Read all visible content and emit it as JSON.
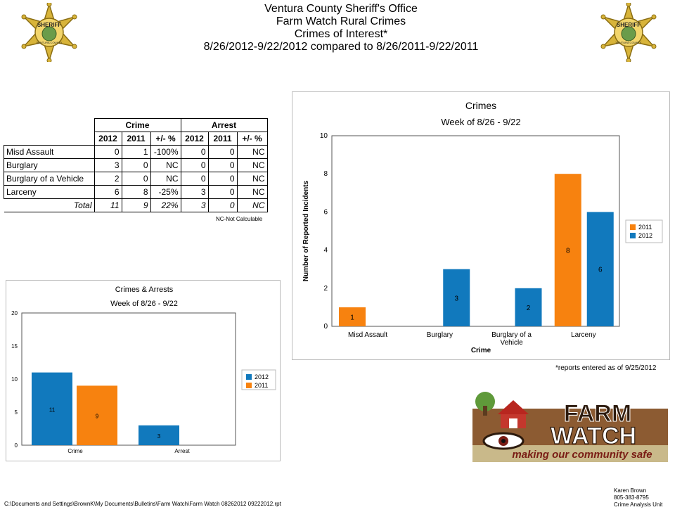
{
  "header": {
    "line1": "Ventura County Sheriff's Office",
    "line2": "Farm Watch Rural Crimes",
    "line3": "Crimes of Interest*",
    "line4": "8/26/2012-9/22/2012 compared to 8/26/2011-9/22/2011"
  },
  "badge": {
    "top_text": "SHERIFF",
    "bottom_text": "VENTURA COUNTY"
  },
  "table": {
    "group_crime": "Crime",
    "group_arrest": "Arrest",
    "col_2012": "2012",
    "col_2011": "2011",
    "col_pct": "+/- %",
    "rows": [
      {
        "label": "Misd Assault",
        "c2012": "0",
        "c2011": "1",
        "cpct": "-100%",
        "a2012": "0",
        "a2011": "0",
        "apct": "NC"
      },
      {
        "label": "Burglary",
        "c2012": "3",
        "c2011": "0",
        "cpct": "NC",
        "a2012": "0",
        "a2011": "0",
        "apct": "NC"
      },
      {
        "label": "Burglary of a Vehicle",
        "c2012": "2",
        "c2011": "0",
        "cpct": "NC",
        "a2012": "0",
        "a2011": "0",
        "apct": "NC"
      },
      {
        "label": "Larceny",
        "c2012": "6",
        "c2011": "8",
        "cpct": "-25%",
        "a2012": "3",
        "a2011": "0",
        "apct": "NC"
      }
    ],
    "total": {
      "label": "Total",
      "c2012": "11",
      "c2011": "9",
      "cpct": "22%",
      "a2012": "3",
      "a2011": "0",
      "apct": "NC"
    },
    "note": "NC-Not Calculable"
  },
  "chart_data": [
    {
      "type": "bar",
      "title": "Crimes",
      "subtitle": "Week of 8/26 - 9/22",
      "xlabel": "Crime",
      "ylabel": "Number of Reported Incidents",
      "categories": [
        "Misd  Assault",
        "Burglary",
        "Burglary of a Vehicle",
        "Larceny"
      ],
      "series": [
        {
          "name": "2011",
          "color": "#f7820f",
          "values": [
            1,
            0,
            0,
            8
          ]
        },
        {
          "name": "2012",
          "color": "#1179bd",
          "values": [
            0,
            3,
            2,
            6
          ]
        }
      ],
      "ylim": [
        0,
        10
      ],
      "yticks": [
        0,
        2,
        4,
        6,
        8,
        10
      ],
      "grid": false,
      "legend": "right"
    },
    {
      "type": "bar",
      "title": "Crimes & Arrests",
      "subtitle": "Week of 8/26 - 9/22",
      "xlabel": "",
      "ylabel": "",
      "categories": [
        "Crime",
        "Arrest"
      ],
      "series": [
        {
          "name": "2012",
          "color": "#1179bd",
          "values": [
            11,
            3
          ]
        },
        {
          "name": "2011",
          "color": "#f7820f",
          "values": [
            9,
            0
          ]
        }
      ],
      "ylim": [
        0,
        20
      ],
      "yticks": [
        0,
        5,
        10,
        15,
        20
      ],
      "grid": false,
      "legend": "right"
    }
  ],
  "reports_note": "*reports entered as of 9/25/2012",
  "logo": {
    "word1": "FARM",
    "word2": "WATCH",
    "tagline": "making our community safe"
  },
  "footer": {
    "path": "C:\\Documents and Settings\\BrownK\\My Documents\\Bulletins\\Farm Watch\\Farm Watch 08262012 09222012.rpt",
    "name": "Karen Brown",
    "phone": "805-383-8795",
    "unit": "Crime Analysis Unit"
  },
  "colors": {
    "orange": "#f7820f",
    "blue": "#1179bd"
  }
}
